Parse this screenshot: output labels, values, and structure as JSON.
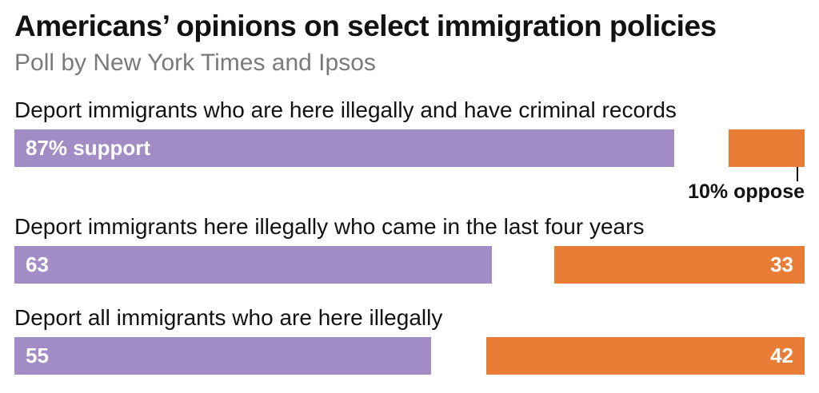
{
  "chart_data": {
    "type": "bar",
    "orientation": "horizontal-stacked",
    "title": "Americans’ opinions on select immigration policies",
    "subtitle": "Poll by New York Times and Ipsos",
    "categories": [
      "Deport immigrants who are here illegally and have criminal records",
      "Deport immigrants here illegally who came in the last four years",
      "Deport all immigrants who are here illegally"
    ],
    "series": [
      {
        "name": "support",
        "values": [
          87,
          63,
          55
        ],
        "color": "#a18cc6"
      },
      {
        "name": "oppose",
        "values": [
          10,
          33,
          42
        ],
        "color": "#ea7d35"
      }
    ],
    "labels": {
      "support": [
        "87% support",
        "63",
        "55"
      ],
      "oppose": [
        "10% oppose",
        "33",
        "42"
      ]
    },
    "xlim": [
      0,
      100
    ]
  }
}
